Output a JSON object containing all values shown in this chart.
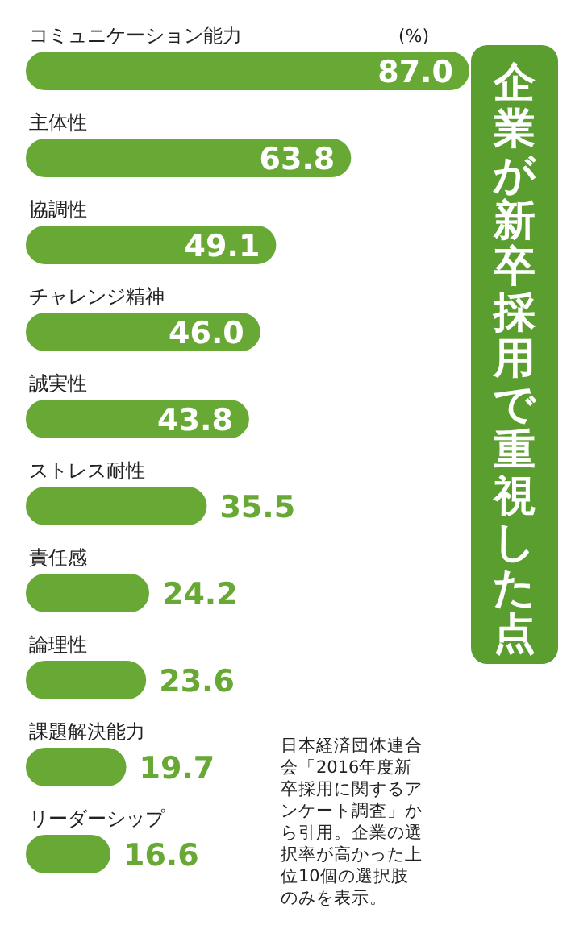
{
  "chart_data": {
    "type": "bar",
    "orientation": "horizontal",
    "title": "企業が新卒採用で重視した点",
    "xlabel": "(%)",
    "categories": [
      "コミュニケーション能力",
      "主体性",
      "協調性",
      "チャレンジ精神",
      "誠実性",
      "ストレス耐性",
      "責任感",
      "論理性",
      "課題解決能力",
      "リーダーシップ"
    ],
    "values": [
      87.0,
      63.8,
      49.1,
      46.0,
      43.8,
      35.5,
      24.2,
      23.6,
      19.7,
      16.6
    ],
    "color": "#68a935",
    "value_labels": [
      "87.0",
      "63.8",
      "49.1",
      "46.0",
      "43.8",
      "35.5",
      "24.2",
      "23.6",
      "19.7",
      "16.6"
    ],
    "annotations": [
      "日本経済団体連合会「2016年度新卒採用に関するアンケート調査」から引用。企業の選択率が高かった上位10個の選択肢のみを表示。"
    ]
  }
}
